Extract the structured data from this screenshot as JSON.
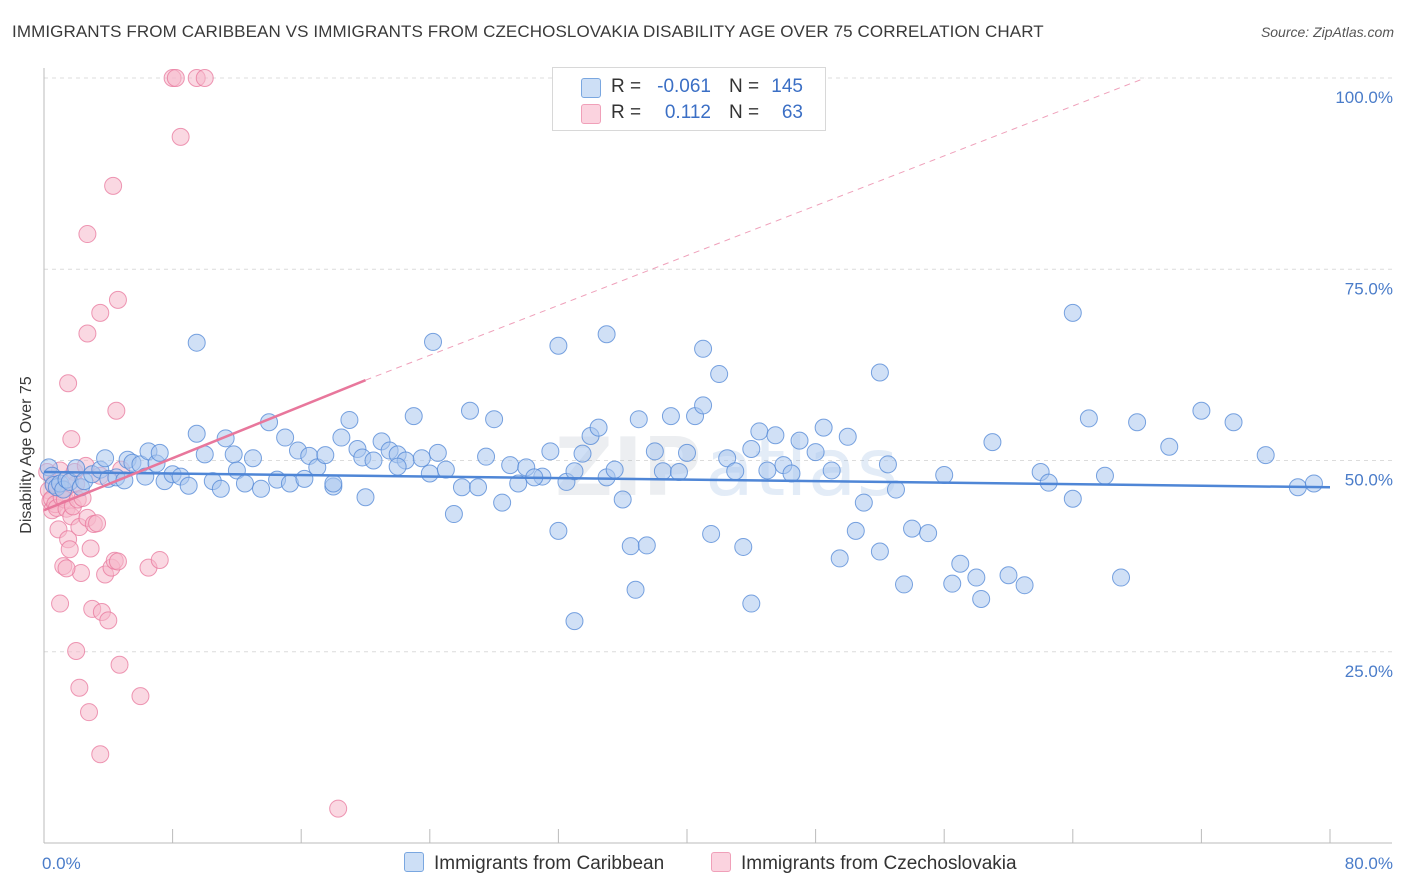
{
  "header": {
    "title": "IMMIGRANTS FROM CARIBBEAN VS IMMIGRANTS FROM CZECHOSLOVAKIA DISABILITY AGE OVER 75 CORRELATION CHART",
    "source": "Source: ZipAtlas.com"
  },
  "watermark": {
    "part1": "ZIP",
    "part2": "atlas"
  },
  "stats": {
    "rows": [
      {
        "r_label": "R =",
        "r_value": "-0.061",
        "n_label": "N =",
        "n_value": "145",
        "color": "#a9c6ee"
      },
      {
        "r_label": "R =",
        "r_value": "0.112",
        "n_label": "N =",
        "n_value": "63",
        "color": "#f6b8cb"
      }
    ]
  },
  "legend": {
    "items": [
      {
        "label": "Immigrants from Caribbean",
        "color": "#a9c6ee"
      },
      {
        "label": "Immigrants from Czechoslovakia",
        "color": "#f6b8cb"
      }
    ]
  },
  "chart_data": {
    "type": "scatter",
    "title": "IMMIGRANTS FROM CARIBBEAN VS IMMIGRANTS FROM CZECHOSLOVAKIA DISABILITY AGE OVER 75 CORRELATION CHART",
    "xlabel": "",
    "ylabel": "Disability Age Over 75",
    "xlim": [
      0,
      80
    ],
    "ylim": [
      0,
      100
    ],
    "x_tick_labels": [
      "0.0%",
      "80.0%"
    ],
    "y_tick_labels": [
      "100.0%",
      "75.0%",
      "50.0%",
      "25.0%"
    ],
    "y_ticks": [
      100,
      75,
      50,
      25
    ],
    "x_ticks": [
      0,
      8,
      16,
      24,
      32,
      40,
      48,
      56,
      64,
      72,
      80
    ],
    "grid": true,
    "legend_position": "bottom",
    "series": [
      {
        "name": "Immigrants from Caribbean",
        "color": "#4f86d6",
        "fill": "#a9c6ee",
        "trend": {
          "x": [
            0,
            80
          ],
          "y": [
            48.5,
            46.5
          ],
          "style": "solid"
        },
        "points": [
          [
            0.3,
            49.1
          ],
          [
            0.5,
            48.0
          ],
          [
            0.6,
            46.8
          ],
          [
            0.8,
            46.5
          ],
          [
            1.0,
            47.0
          ],
          [
            1.2,
            46.2
          ],
          [
            1.4,
            47.5
          ],
          [
            1.6,
            47.2
          ],
          [
            2.0,
            49.0
          ],
          [
            2.3,
            46.5
          ],
          [
            2.5,
            47.3
          ],
          [
            3.0,
            48.2
          ],
          [
            3.5,
            48.8
          ],
          [
            3.8,
            50.3
          ],
          [
            4.0,
            47.6
          ],
          [
            4.5,
            47.8
          ],
          [
            5.0,
            47.4
          ],
          [
            5.2,
            50.1
          ],
          [
            5.5,
            49.7
          ],
          [
            6.0,
            49.5
          ],
          [
            6.3,
            47.9
          ],
          [
            6.5,
            51.2
          ],
          [
            7.0,
            49.6
          ],
          [
            7.2,
            51.0
          ],
          [
            7.5,
            47.3
          ],
          [
            8.0,
            48.2
          ],
          [
            8.5,
            47.9
          ],
          [
            9.0,
            46.7
          ],
          [
            9.5,
            53.5
          ],
          [
            10.0,
            50.8
          ],
          [
            10.5,
            47.3
          ],
          [
            11.0,
            46.3
          ],
          [
            11.3,
            52.9
          ],
          [
            11.8,
            50.8
          ],
          [
            12.0,
            48.7
          ],
          [
            12.5,
            47.0
          ],
          [
            13.0,
            50.3
          ],
          [
            13.5,
            46.3
          ],
          [
            14.0,
            55.0
          ],
          [
            14.5,
            47.5
          ],
          [
            15.0,
            53.0
          ],
          [
            15.3,
            47.0
          ],
          [
            15.8,
            51.3
          ],
          [
            16.2,
            47.6
          ],
          [
            16.5,
            50.6
          ],
          [
            17.0,
            49.1
          ],
          [
            17.5,
            50.7
          ],
          [
            18.0,
            46.6
          ],
          [
            18.5,
            53.0
          ],
          [
            19.0,
            55.3
          ],
          [
            19.5,
            51.5
          ],
          [
            19.8,
            50.4
          ],
          [
            20.0,
            45.2
          ],
          [
            20.5,
            50.0
          ],
          [
            21.0,
            52.5
          ],
          [
            21.5,
            51.3
          ],
          [
            22.0,
            50.8
          ],
          [
            22.5,
            50.0
          ],
          [
            23.0,
            55.8
          ],
          [
            23.5,
            50.3
          ],
          [
            24.0,
            48.3
          ],
          [
            24.5,
            51.0
          ],
          [
            25.0,
            48.8
          ],
          [
            25.5,
            43.0
          ],
          [
            26.0,
            46.5
          ],
          [
            26.5,
            56.5
          ],
          [
            27.0,
            46.5
          ],
          [
            27.5,
            50.5
          ],
          [
            28.0,
            55.4
          ],
          [
            28.5,
            44.5
          ],
          [
            29.0,
            49.4
          ],
          [
            29.5,
            47.0
          ],
          [
            30.0,
            49.1
          ],
          [
            31.0,
            47.9
          ],
          [
            31.5,
            51.2
          ],
          [
            32.0,
            40.8
          ],
          [
            32.5,
            47.2
          ],
          [
            33.0,
            48.6
          ],
          [
            33.5,
            50.9
          ],
          [
            34.0,
            53.2
          ],
          [
            34.5,
            54.3
          ],
          [
            35.0,
            47.8
          ],
          [
            35.5,
            48.8
          ],
          [
            36.0,
            44.9
          ],
          [
            36.5,
            38.8
          ],
          [
            37.0,
            55.4
          ],
          [
            37.5,
            38.9
          ],
          [
            38.0,
            51.2
          ],
          [
            38.5,
            48.6
          ],
          [
            39.0,
            55.8
          ],
          [
            39.5,
            48.5
          ],
          [
            40.0,
            51.0
          ],
          [
            40.5,
            55.8
          ],
          [
            41.0,
            57.2
          ],
          [
            41.5,
            40.4
          ],
          [
            42.0,
            61.3
          ],
          [
            42.5,
            50.3
          ],
          [
            43.0,
            48.6
          ],
          [
            43.5,
            38.7
          ],
          [
            44.0,
            51.5
          ],
          [
            44.5,
            53.8
          ],
          [
            45.0,
            48.7
          ],
          [
            45.5,
            53.3
          ],
          [
            46.0,
            49.4
          ],
          [
            46.5,
            48.3
          ],
          [
            47.0,
            52.6
          ],
          [
            48.0,
            51.1
          ],
          [
            48.5,
            54.3
          ],
          [
            49.0,
            48.7
          ],
          [
            49.5,
            37.2
          ],
          [
            50.0,
            53.1
          ],
          [
            50.5,
            40.8
          ],
          [
            51.0,
            44.5
          ],
          [
            52.0,
            38.1
          ],
          [
            52.5,
            49.5
          ],
          [
            53.0,
            46.2
          ],
          [
            53.5,
            33.8
          ],
          [
            54.0,
            41.1
          ],
          [
            55.0,
            40.5
          ],
          [
            56.0,
            48.1
          ],
          [
            57.0,
            36.5
          ],
          [
            58.0,
            34.7
          ],
          [
            59.0,
            52.4
          ],
          [
            60.0,
            35.0
          ],
          [
            61.0,
            33.7
          ],
          [
            62.0,
            48.5
          ],
          [
            64.0,
            45.0
          ],
          [
            65.0,
            55.5
          ],
          [
            66.0,
            48.0
          ],
          [
            67.0,
            34.7
          ],
          [
            68.0,
            55.0
          ],
          [
            70.0,
            51.8
          ],
          [
            72.0,
            56.5
          ],
          [
            74.0,
            55.0
          ],
          [
            76.0,
            50.7
          ],
          [
            78.0,
            46.5
          ],
          [
            79.0,
            47.0
          ],
          [
            24.2,
            65.5
          ],
          [
            32.0,
            65.0
          ],
          [
            35.0,
            66.5
          ],
          [
            52.0,
            61.5
          ],
          [
            64.0,
            69.3
          ],
          [
            33.0,
            29.0
          ],
          [
            36.8,
            33.1
          ],
          [
            44.0,
            31.3
          ],
          [
            58.3,
            31.9
          ],
          [
            56.5,
            33.9
          ],
          [
            9.5,
            65.4
          ],
          [
            41.0,
            64.6
          ],
          [
            22.0,
            49.2
          ],
          [
            18.0,
            47.0
          ],
          [
            30.5,
            47.8
          ],
          [
            62.5,
            47.1
          ]
        ]
      },
      {
        "name": "Immigrants from Czechoslovakia",
        "color": "#e8779c",
        "fill": "#f6b8cb",
        "trend": {
          "x": [
            0,
            20
          ],
          "y": [
            43.5,
            60.5
          ],
          "style": "solid",
          "extended_x": [
            20,
            68.5
          ],
          "extended_y": [
            60.5,
            100
          ],
          "extended_style": "dashed"
        },
        "points": [
          [
            0.2,
            48.5
          ],
          [
            0.3,
            46.1
          ],
          [
            0.4,
            44.7
          ],
          [
            0.5,
            43.5
          ],
          [
            0.5,
            45.0
          ],
          [
            0.6,
            47.0
          ],
          [
            0.7,
            44.3
          ],
          [
            0.8,
            43.8
          ],
          [
            0.9,
            41.0
          ],
          [
            1.0,
            48.7
          ],
          [
            1.1,
            45.2
          ],
          [
            1.2,
            46.3
          ],
          [
            1.3,
            44.9
          ],
          [
            1.4,
            43.7
          ],
          [
            1.5,
            39.7
          ],
          [
            1.6,
            38.4
          ],
          [
            1.7,
            42.7
          ],
          [
            1.8,
            44.0
          ],
          [
            1.9,
            48.5
          ],
          [
            2.0,
            46.9
          ],
          [
            2.1,
            44.9
          ],
          [
            2.2,
            41.3
          ],
          [
            2.3,
            35.3
          ],
          [
            2.4,
            45.1
          ],
          [
            2.6,
            49.3
          ],
          [
            2.7,
            42.5
          ],
          [
            2.9,
            38.5
          ],
          [
            3.0,
            30.6
          ],
          [
            3.1,
            41.7
          ],
          [
            3.3,
            41.8
          ],
          [
            3.5,
            48.0
          ],
          [
            3.6,
            30.2
          ],
          [
            3.8,
            35.1
          ],
          [
            4.0,
            29.1
          ],
          [
            4.2,
            36.0
          ],
          [
            4.4,
            36.9
          ],
          [
            4.6,
            36.8
          ],
          [
            1.0,
            31.3
          ],
          [
            1.2,
            36.2
          ],
          [
            1.4,
            35.9
          ],
          [
            1.5,
            60.1
          ],
          [
            1.7,
            52.8
          ],
          [
            2.0,
            25.1
          ],
          [
            2.2,
            20.3
          ],
          [
            2.7,
            79.6
          ],
          [
            2.7,
            66.6
          ],
          [
            2.8,
            17.1
          ],
          [
            3.5,
            11.6
          ],
          [
            3.5,
            69.3
          ],
          [
            4.3,
            85.9
          ],
          [
            4.5,
            56.5
          ],
          [
            4.6,
            71.0
          ],
          [
            4.7,
            23.3
          ],
          [
            4.8,
            48.8
          ],
          [
            6.0,
            19.2
          ],
          [
            6.5,
            36.0
          ],
          [
            7.2,
            37.0
          ],
          [
            8.0,
            100.0
          ],
          [
            8.2,
            100.0
          ],
          [
            8.5,
            92.3
          ],
          [
            9.5,
            100.0
          ],
          [
            10.0,
            100.0
          ],
          [
            18.3,
            4.5
          ]
        ]
      }
    ]
  }
}
